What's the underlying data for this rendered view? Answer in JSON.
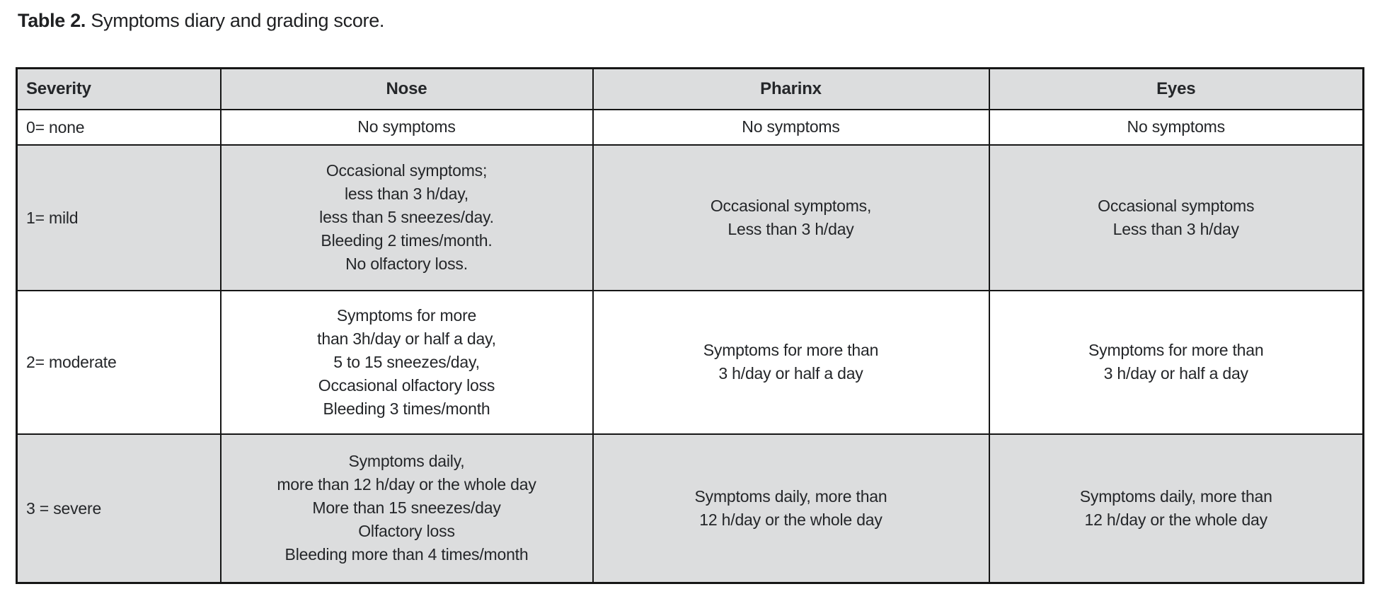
{
  "caption": {
    "label": "Table 2.",
    "text": " Symptoms diary and grading score."
  },
  "table": {
    "headers": [
      "Severity",
      "Nose",
      "Pharinx",
      "Eyes"
    ],
    "rows": [
      {
        "severity": "0= none",
        "nose": [
          "No symptoms"
        ],
        "pharinx": [
          "No symptoms"
        ],
        "eyes": [
          "No symptoms"
        ],
        "shaded": false
      },
      {
        "severity": "1= mild",
        "nose": [
          "Occasional symptoms;",
          "less than 3 h/day,",
          "less than 5 sneezes/day.",
          "Bleeding 2 times/month.",
          "No olfactory loss."
        ],
        "pharinx": [
          "Occasional symptoms,",
          "Less than 3 h/day"
        ],
        "eyes": [
          "Occasional symptoms",
          "Less than 3 h/day"
        ],
        "shaded": true
      },
      {
        "severity": "2= moderate",
        "nose": [
          "Symptoms for more",
          "than 3h/day or half a day,",
          "5 to 15 sneezes/day,",
          "Occasional olfactory loss",
          "Bleeding 3 times/month"
        ],
        "pharinx": [
          "Symptoms for more than",
          "3 h/day or half a day"
        ],
        "eyes": [
          "Symptoms for more than",
          "3 h/day or half a day"
        ],
        "shaded": false
      },
      {
        "severity": "3 = severe",
        "nose": [
          "Symptoms daily,",
          "more than 12 h/day or the whole day",
          "More than 15 sneezes/day",
          "Olfactory loss",
          "Bleeding more than 4 times/month"
        ],
        "pharinx": [
          "Symptoms daily, more than",
          "12 h/day or the whole day"
        ],
        "eyes": [
          "Symptoms daily, more than",
          "12 h/day or the whole day"
        ],
        "shaded": true
      }
    ],
    "colors": {
      "shaded_row_bg": "#dcddde",
      "border": "#161616",
      "text": "#242629"
    }
  }
}
